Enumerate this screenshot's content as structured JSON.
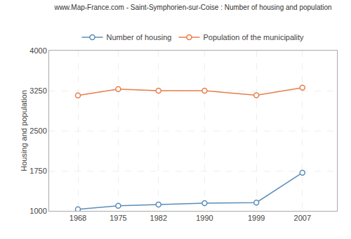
{
  "chart_data": {
    "type": "line",
    "title": "www.Map-France.com - Saint-Symphorien-sur-Coise : Number of housing and population",
    "y_label": "Housing and population",
    "x": [
      1968,
      1975,
      1982,
      1990,
      1999,
      2007
    ],
    "series": [
      {
        "name": "Number of housing",
        "color": "#5b8db8",
        "values": [
          1030,
          1095,
          1120,
          1145,
          1155,
          1715
        ]
      },
      {
        "name": "Population of the municipality",
        "color": "#e87d4a",
        "values": [
          3160,
          3280,
          3250,
          3250,
          3165,
          3305
        ]
      }
    ],
    "xlim": [
      1963,
      2013
    ],
    "xticks": [
      1968,
      1975,
      1982,
      1990,
      1999,
      2007
    ],
    "ylim": [
      1000,
      4000
    ],
    "yticks": [
      1000,
      1750,
      2500,
      3250,
      4000
    ],
    "grid": true,
    "legend": "top",
    "marker": "circle"
  }
}
